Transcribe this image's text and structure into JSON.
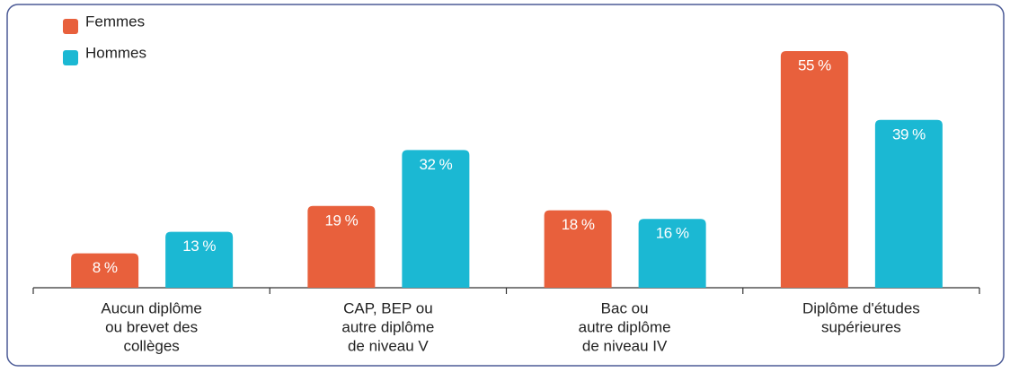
{
  "chart_data": {
    "type": "bar",
    "categories": [
      [
        "Aucun diplôme",
        "ou brevet des",
        "collèges"
      ],
      [
        "CAP, BEP ou",
        "autre diplôme",
        "de niveau V"
      ],
      [
        "Bac ou",
        "autre diplôme",
        "de niveau IV"
      ],
      [
        "Diplôme d'études",
        "supérieures"
      ]
    ],
    "series": [
      {
        "name": "Femmes",
        "color": "#e8603c",
        "values": [
          8,
          19,
          18,
          55
        ],
        "value_labels": [
          "8 %",
          "19 %",
          "18 %",
          "55 %"
        ]
      },
      {
        "name": "Hommes",
        "color": "#1bb8d3",
        "values": [
          13,
          32,
          16,
          39
        ],
        "value_labels": [
          "13 %",
          "32 %",
          "16 %",
          "39 %"
        ]
      }
    ]
  }
}
